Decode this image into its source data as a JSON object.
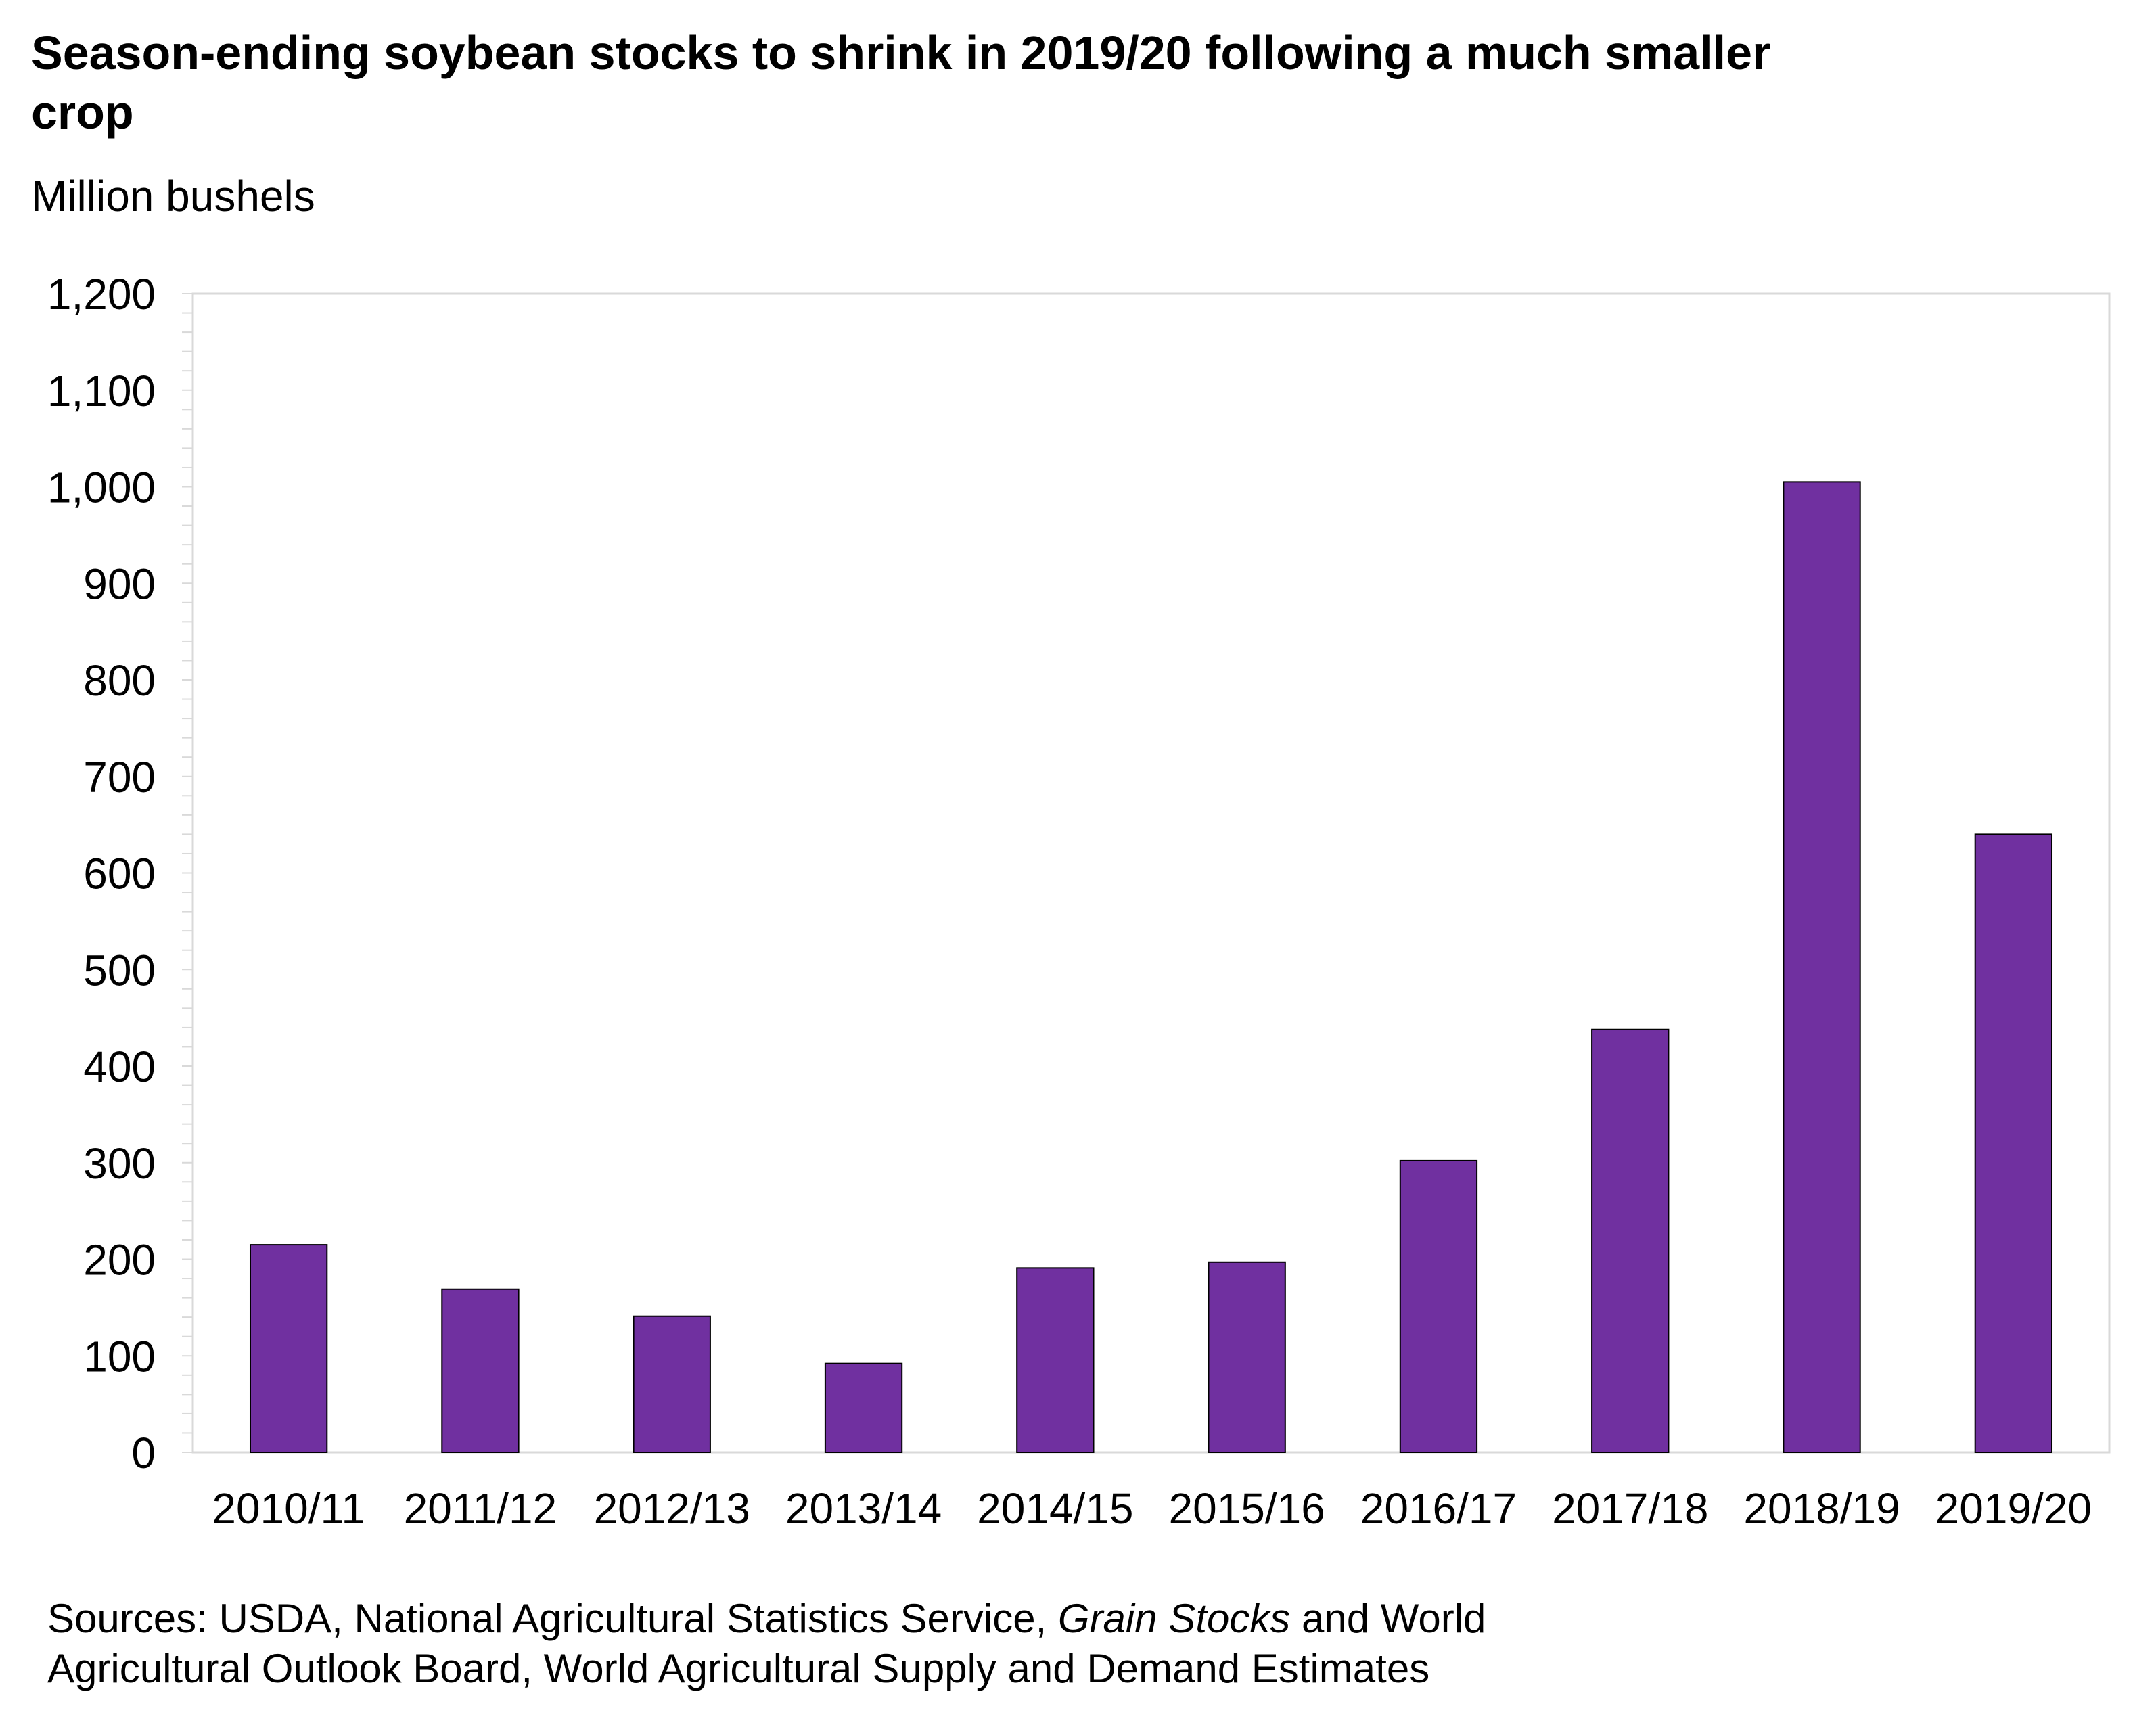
{
  "chart_data": {
    "type": "bar",
    "title": "Season-ending soybean stocks to shrink in 2019/20 following a much smaller crop",
    "ylabel": "Million bushels",
    "xlabel": "",
    "categories": [
      "2010/11",
      "2011/12",
      "2012/13",
      "2013/14",
      "2014/15",
      "2015/16",
      "2016/17",
      "2017/18",
      "2018/19",
      "2019/20"
    ],
    "values": [
      215,
      169,
      141,
      92,
      191,
      197,
      302,
      438,
      1005,
      640
    ],
    "ylim": [
      0,
      1200
    ],
    "yticks": [
      0,
      100,
      200,
      300,
      400,
      500,
      600,
      700,
      800,
      900,
      1000,
      1100,
      1200
    ],
    "ytick_labels": [
      "0",
      "100",
      "200",
      "300",
      "400",
      "500",
      "600",
      "700",
      "800",
      "900",
      "1,000",
      "1,100",
      "1,200"
    ],
    "grid": false,
    "legend": "none",
    "bar_color": "#7030A0"
  },
  "source": {
    "line1_prefix": "Sources: USDA, National Agricultural  Statistics Service, ",
    "line1_italic": "Grain Stocks",
    "line1_suffix": "  and World",
    "line2": "Agricultural Outlook Board, World Agricultural Supply and Demand Estimates"
  }
}
